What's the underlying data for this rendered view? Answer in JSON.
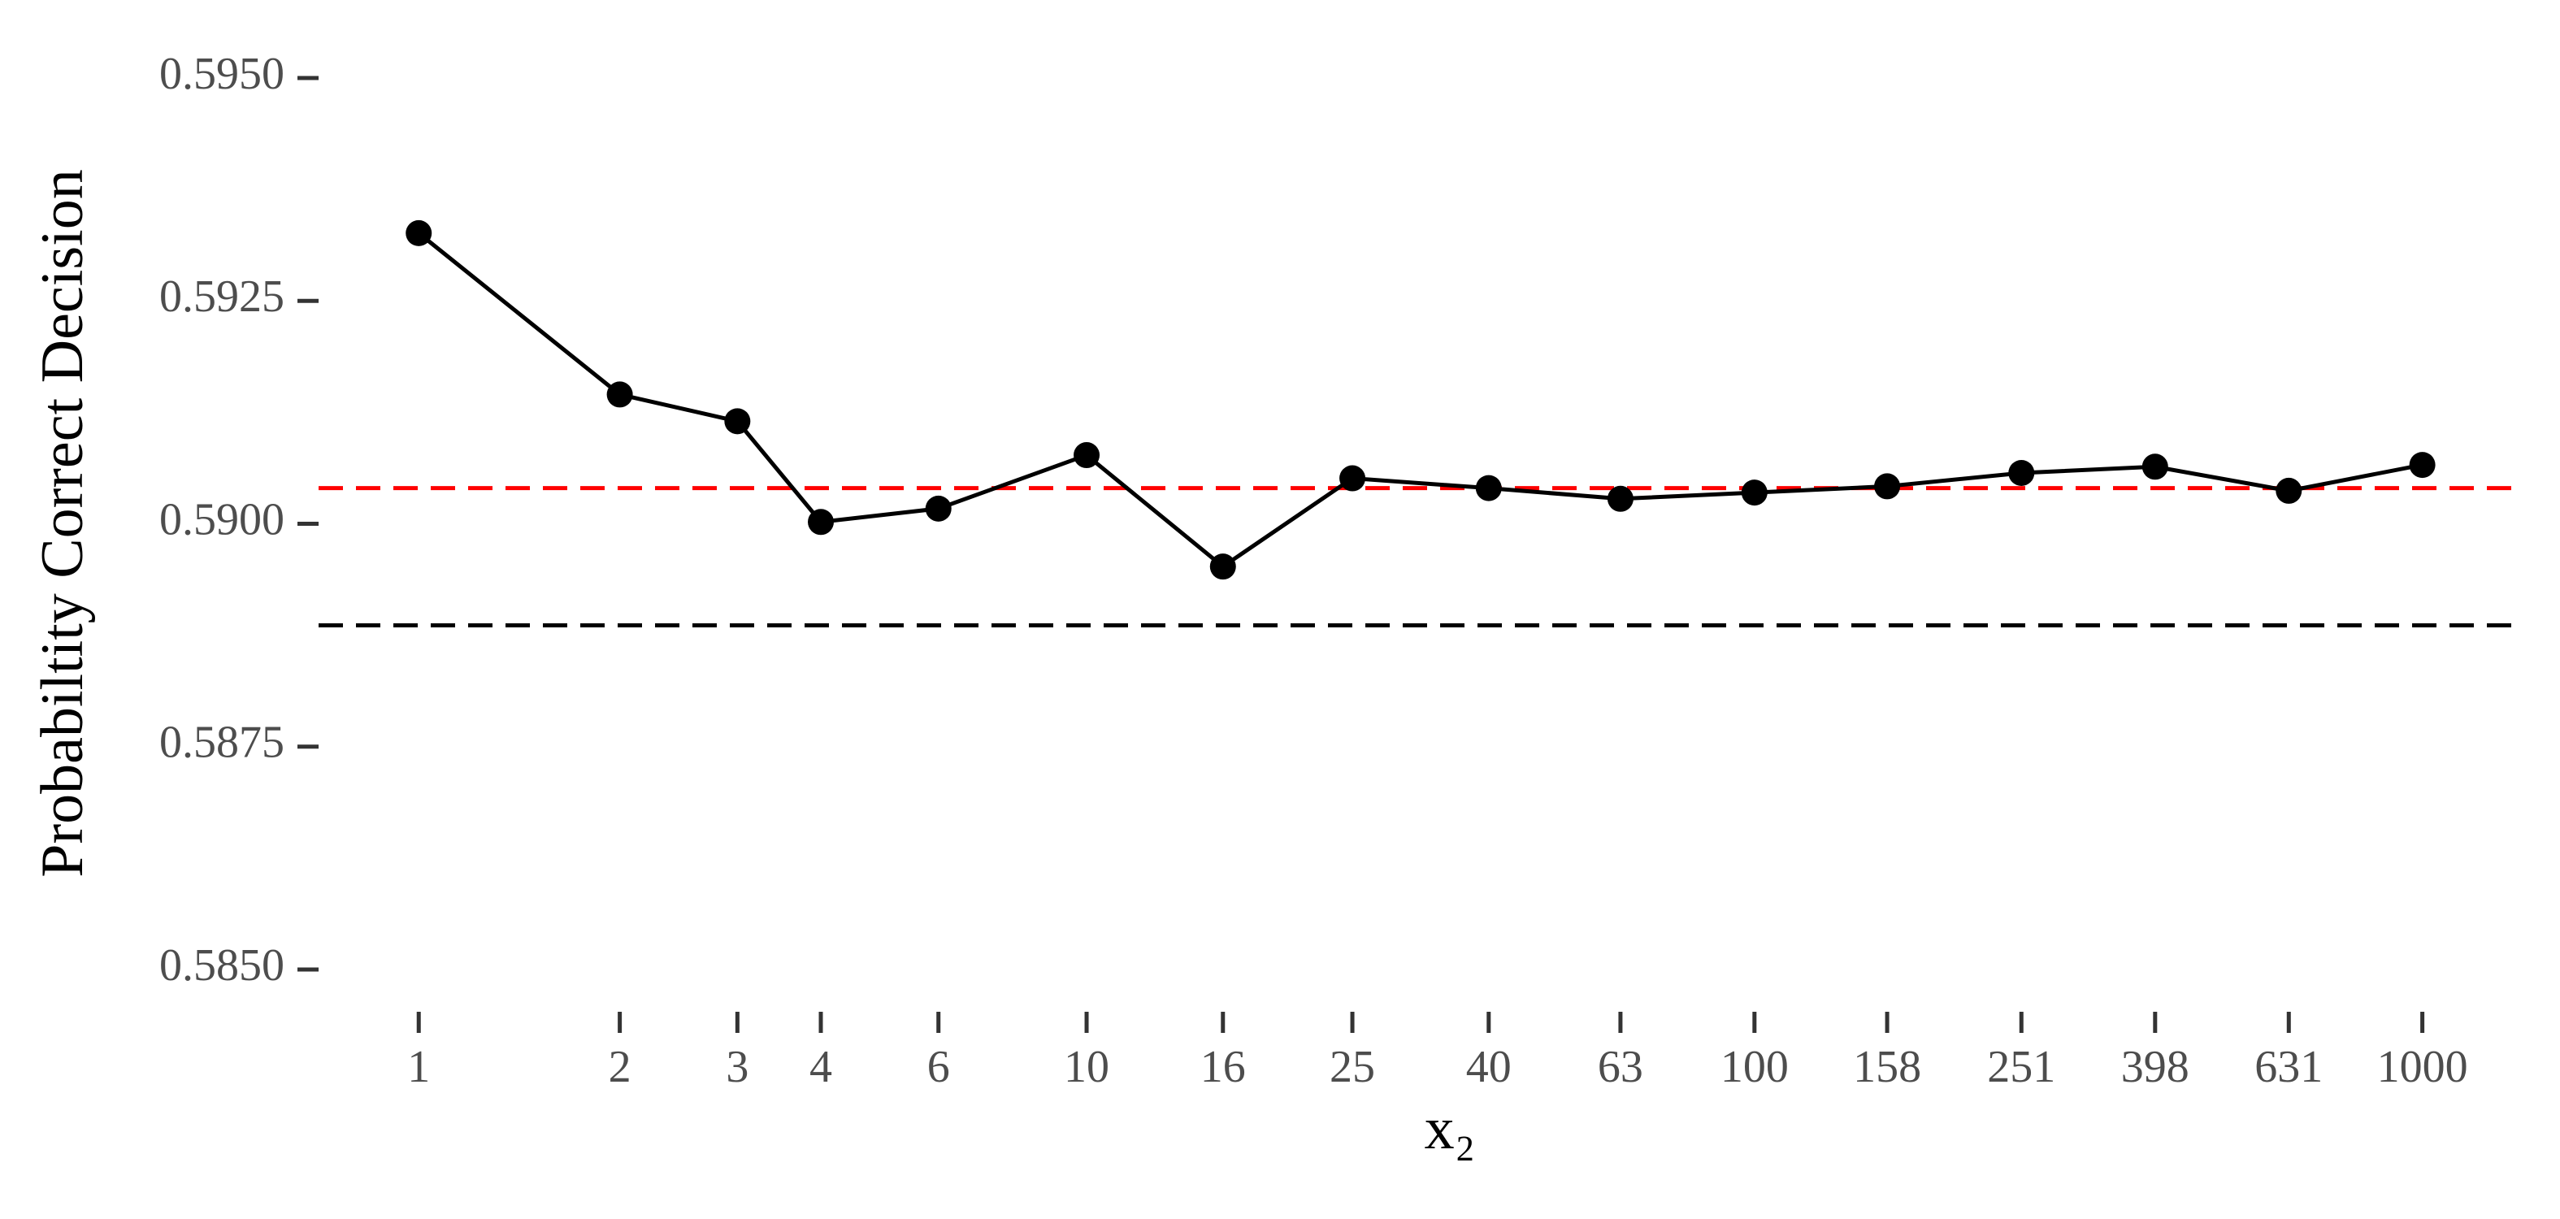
{
  "chart_data": {
    "type": "line",
    "xlabel": "x₂",
    "ylabel": "Probabiltity Correct Decision",
    "x": [
      1,
      2,
      3,
      4,
      6,
      10,
      16,
      25,
      40,
      63,
      100,
      158,
      251,
      398,
      631,
      1000
    ],
    "series": [
      {
        "color": "#000000",
        "values": [
          0.59326,
          0.59145,
          0.59115,
          0.59002,
          0.59017,
          0.59077,
          0.58952,
          0.59051,
          0.5904,
          0.59028,
          0.59035,
          0.59042,
          0.59057,
          0.59064,
          0.59037,
          0.59066
        ]
      }
    ],
    "hlines": [
      {
        "value": 0.5904,
        "color": "#ff0000"
      },
      {
        "value": 0.58886,
        "color": "#000000"
      }
    ],
    "xscale": "log",
    "xlim": [
      0.708,
      1413
    ],
    "xticks": [
      1,
      2,
      3,
      4,
      6,
      10,
      16,
      25,
      40,
      63,
      100,
      158,
      251,
      398,
      631,
      1000
    ],
    "ylim": [
      0.585,
      0.595
    ],
    "yticks": [
      {
        "value": 0.585,
        "label": "0.5850"
      },
      0.5875,
      {
        "value": 0.59,
        "label": "0.5900"
      },
      0.5925,
      {
        "value": 0.595,
        "label": "0.5950"
      }
    ],
    "grid": false
  }
}
